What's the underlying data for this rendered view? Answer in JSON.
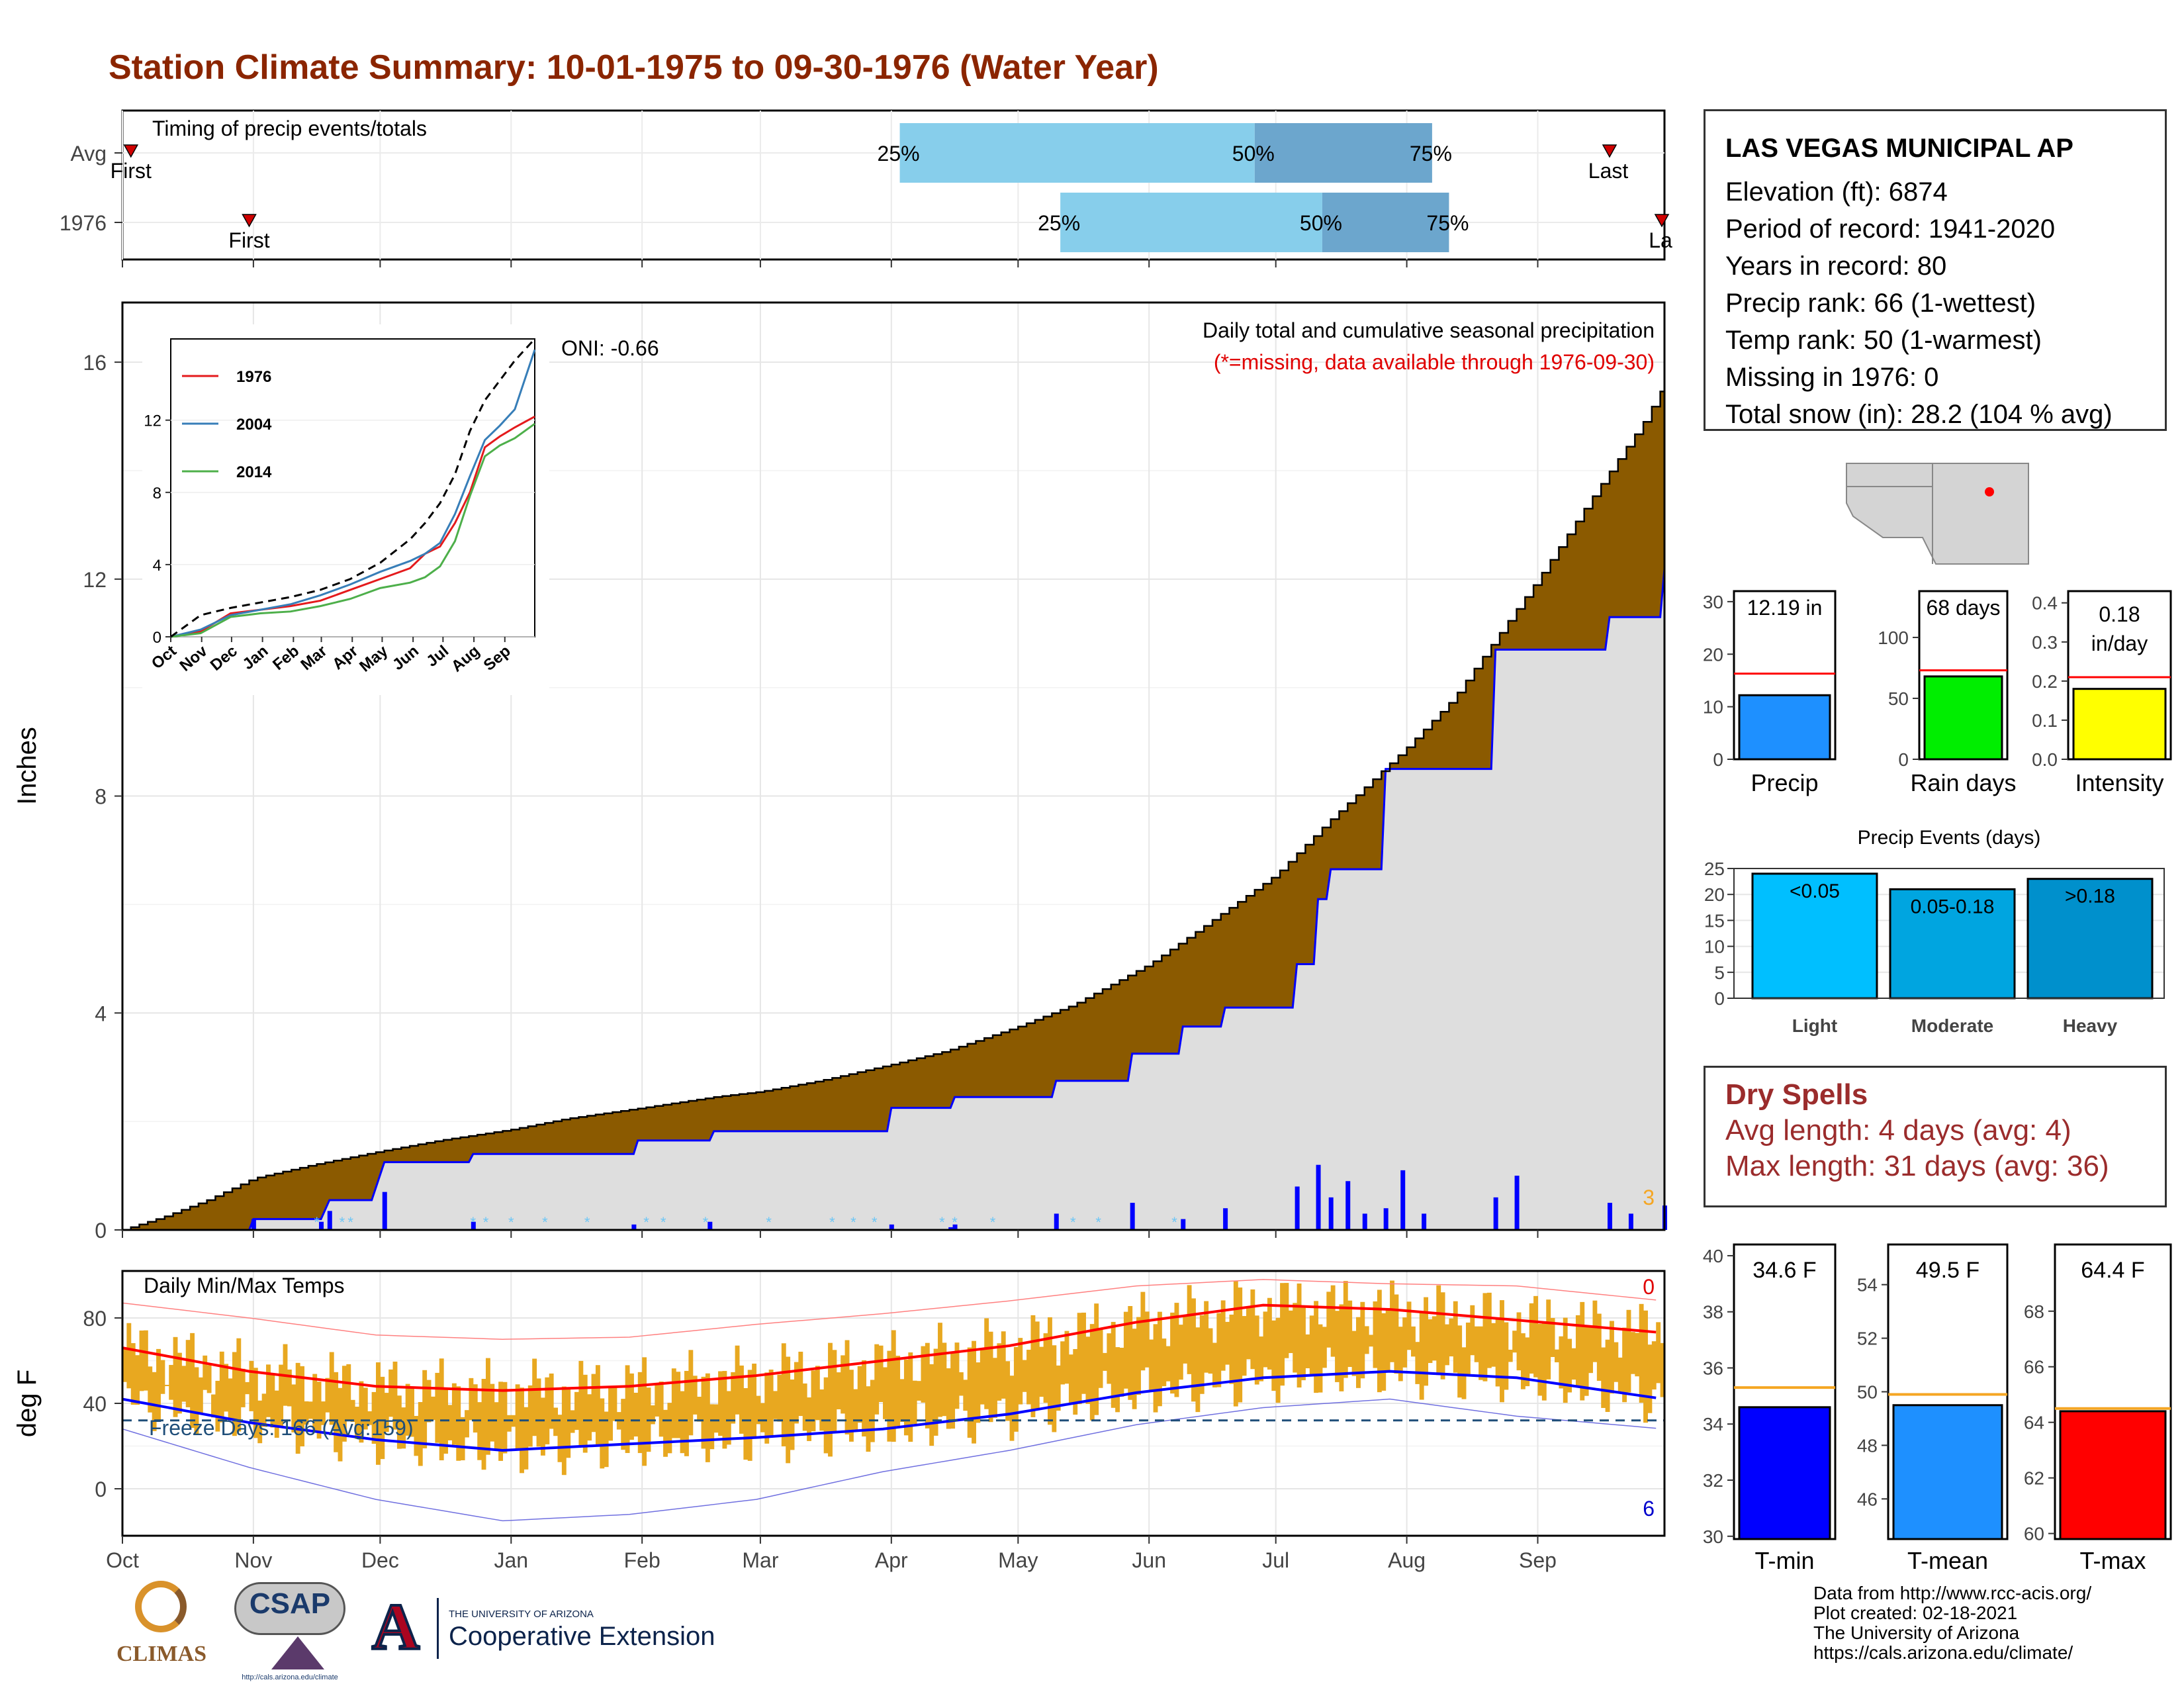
{
  "page": {
    "title": "Station Climate Summary: 10-01-1975 to 09-30-1976 (Water Year)"
  },
  "info": {
    "station": "LAS VEGAS MUNICIPAL AP",
    "lines": [
      "Elevation (ft): 6874",
      "Period of record: 1941-2020",
      "Years in record: 80",
      "Precip rank: 66 (1-wettest)",
      "Temp rank: 50 (1-warmest)",
      "Missing in 1976: 0",
      "Total snow (in): 28.2 (104 % avg)"
    ]
  },
  "dry_spells": {
    "title": "Dry Spells",
    "avg_length": "Avg length: 4 days (avg: 4)",
    "max_length": "Max length: 31 days (avg: 36)"
  },
  "footer": {
    "lines": [
      "Data from http://www.rcc-acis.org/",
      "Plot created: 02-18-2021",
      "The University of Arizona",
      "https://cals.arizona.edu/climate/"
    ],
    "logos": {
      "climas": "CLIMAS",
      "csap": "CSAP",
      "csap_url": "http://cals.arizona.edu/climate",
      "ua_small": "THE UNIVERSITY OF ARIZONA",
      "ua_large": "Cooperative Extension"
    }
  },
  "colors": {
    "title": "#8b2500",
    "cumulative_avg": "#8b5a00",
    "cumulative_obs": "#dedede",
    "daily_precip": "#0000ff",
    "temp_bars": "#e8a820",
    "max_avg": "#ff0000",
    "min_avg": "#0000ff",
    "quartile_light": "#87ceeb",
    "quartile_dark": "#6ca6cd",
    "dry_spells": "#9b2c2c"
  },
  "chart_data": [
    {
      "id": "timing",
      "type": "range-bar",
      "title": "Timing of precip events/totals",
      "months": [
        "Oct",
        "Nov",
        "Dec",
        "Jan",
        "Feb",
        "Mar",
        "Apr",
        "May",
        "Jun",
        "Jul",
        "Aug",
        "Sep"
      ],
      "x_unit": "day of water year",
      "rows": [
        {
          "label": "Avg",
          "first": 2,
          "p25": 184,
          "p50": 268,
          "p75": 310,
          "last": 352,
          "first_label": "First",
          "last_label": "Last",
          "p25_label": "25%",
          "p50_label": "50%",
          "p75_label": "75%"
        },
        {
          "label": "1976",
          "first": 30,
          "p25": 222,
          "p50": 284,
          "p75": 314,
          "last": 365,
          "first_label": "First",
          "last_label": "La",
          "p25_label": "25%",
          "p50_label": "50%",
          "p75_label": "75%"
        }
      ]
    },
    {
      "id": "precip",
      "type": "area",
      "title": "Daily total and cumulative seasonal precipitation",
      "subtitle": "(*=missing, data available through 1976-09-30)",
      "ylabel": "Inches",
      "ylim": [
        0,
        17.1
      ],
      "yticks": [
        0,
        4,
        8,
        12,
        16
      ],
      "oni": "ONI: -0.66",
      "corner_count": "3",
      "series": [
        {
          "name": "cumulative_avg",
          "x": [
            0,
            10,
            20,
            31,
            45,
            61,
            75,
            92,
            105,
            123,
            140,
            151,
            165,
            182,
            195,
            212,
            225,
            243,
            255,
            273,
            285,
            304,
            315,
            335,
            346,
            360,
            365
          ],
          "y": [
            0,
            0.25,
            0.55,
            0.95,
            1.2,
            1.45,
            1.65,
            1.85,
            2.05,
            2.25,
            2.45,
            2.55,
            2.75,
            3.05,
            3.3,
            3.75,
            4.15,
            4.9,
            5.55,
            6.55,
            7.5,
            8.9,
            9.8,
            12.0,
            13.3,
            14.9,
            15.6
          ]
        },
        {
          "name": "cumulative_1976",
          "x": [
            0,
            30,
            31,
            47,
            49,
            59,
            62,
            82,
            83,
            121,
            122,
            139,
            140,
            181,
            182,
            196,
            197,
            220,
            221,
            238,
            239,
            250,
            251,
            260,
            261,
            277,
            278,
            282,
            283,
            285,
            286,
            298,
            299,
            324,
            325,
            351,
            352,
            364,
            365
          ],
          "y": [
            0,
            0,
            0.2,
            0.2,
            0.55,
            0.55,
            1.25,
            1.25,
            1.4,
            1.4,
            1.65,
            1.65,
            1.82,
            1.82,
            2.25,
            2.25,
            2.45,
            2.45,
            2.75,
            2.75,
            3.25,
            3.25,
            3.75,
            3.75,
            4.1,
            4.1,
            4.9,
            4.9,
            6.1,
            6.1,
            6.65,
            6.65,
            8.5,
            8.5,
            10.7,
            10.7,
            11.3,
            11.3,
            12.19
          ]
        },
        {
          "name": "daily_precip",
          "x": [
            31,
            47,
            49,
            62,
            83,
            121,
            139,
            182,
            196,
            197,
            221,
            239,
            251,
            261,
            278,
            283,
            286,
            290,
            294,
            299,
            303,
            308,
            325,
            330,
            352,
            357,
            365
          ],
          "y": [
            0.2,
            0.15,
            0.35,
            0.7,
            0.15,
            0.1,
            0.15,
            0.1,
            0.05,
            0.1,
            0.3,
            0.5,
            0.2,
            0.4,
            0.8,
            1.2,
            0.6,
            0.9,
            0.3,
            0.4,
            1.1,
            0.3,
            0.6,
            1.0,
            0.5,
            0.3,
            0.45
          ]
        }
      ]
    },
    {
      "id": "precip_inset",
      "type": "line",
      "xticks": [
        "Oct",
        "Nov",
        "Dec",
        "Jan",
        "Feb",
        "Mar",
        "Apr",
        "May",
        "Jun",
        "Jul",
        "Aug",
        "Sep"
      ],
      "yticks": [
        0,
        4,
        8,
        12
      ],
      "ylim": [
        0,
        16.5
      ],
      "series": [
        {
          "name": "1976",
          "color": "#e41a1c",
          "x": [
            0,
            30,
            60,
            90,
            120,
            150,
            180,
            210,
            240,
            255,
            270,
            285,
            300,
            315,
            330,
            345,
            365
          ],
          "y": [
            0,
            0.3,
            1.3,
            1.5,
            1.7,
            2.0,
            2.6,
            3.2,
            3.8,
            4.6,
            5.0,
            6.3,
            8.0,
            10.5,
            11.1,
            11.6,
            12.2
          ]
        },
        {
          "name": "2004",
          "color": "#377eb8",
          "x": [
            0,
            30,
            60,
            90,
            120,
            150,
            180,
            210,
            240,
            255,
            270,
            285,
            300,
            315,
            330,
            345,
            365
          ],
          "y": [
            0,
            0.4,
            1.2,
            1.5,
            1.8,
            2.3,
            2.9,
            3.6,
            4.2,
            4.6,
            5.2,
            6.8,
            8.9,
            10.9,
            11.7,
            12.6,
            15.9
          ]
        },
        {
          "name": "2014",
          "color": "#4daf4a",
          "x": [
            0,
            30,
            60,
            90,
            120,
            150,
            180,
            210,
            240,
            255,
            270,
            285,
            300,
            315,
            330,
            345,
            365
          ],
          "y": [
            0,
            0.2,
            1.1,
            1.3,
            1.4,
            1.7,
            2.1,
            2.7,
            3.0,
            3.3,
            3.9,
            5.3,
            7.8,
            10.0,
            10.6,
            11.0,
            11.8
          ]
        },
        {
          "name": "avg",
          "color": "#000000",
          "x": [
            0,
            30,
            60,
            90,
            120,
            150,
            180,
            210,
            240,
            255,
            270,
            285,
            300,
            315,
            330,
            345,
            365
          ],
          "y": [
            0,
            1.2,
            1.6,
            1.9,
            2.2,
            2.6,
            3.2,
            4.1,
            5.4,
            6.3,
            7.4,
            9.0,
            11.4,
            13.1,
            14.2,
            15.3,
            16.5
          ]
        }
      ]
    },
    {
      "id": "temps",
      "type": "bar",
      "title": "Daily Min/Max Temps",
      "ylabel": "deg F",
      "ylim": [
        -22,
        102
      ],
      "yticks": [
        0,
        40,
        80
      ],
      "freeze_line": 32,
      "freeze_label": "Freeze Days: 166 (Avg:159)",
      "count_top": "0",
      "count_bottom": "6",
      "months": [
        "Oct",
        "Nov",
        "Dec",
        "Jan",
        "Feb",
        "Mar",
        "Apr",
        "May",
        "Jun",
        "Jul",
        "Aug",
        "Sep"
      ],
      "avg_max": {
        "x": [
          0,
          30,
          60,
          90,
          120,
          150,
          180,
          210,
          240,
          270,
          300,
          330,
          365
        ],
        "y": [
          66,
          55,
          48,
          46,
          48,
          53,
          60,
          67,
          78,
          86,
          84,
          79,
          73
        ]
      },
      "avg_min": {
        "x": [
          0,
          30,
          60,
          90,
          120,
          150,
          180,
          210,
          240,
          270,
          300,
          330,
          365
        ],
        "y": [
          42,
          31,
          23,
          18,
          21,
          24,
          28,
          35,
          45,
          52,
          55,
          52,
          42
        ]
      },
      "rec_max": {
        "x": [
          0,
          30,
          60,
          90,
          120,
          150,
          180,
          210,
          240,
          270,
          300,
          330,
          365
        ],
        "y": [
          87,
          80,
          72,
          70,
          71,
          77,
          82,
          88,
          95,
          98,
          96,
          95,
          88
        ]
      },
      "rec_min": {
        "x": [
          0,
          30,
          60,
          90,
          120,
          150,
          180,
          210,
          240,
          270,
          300,
          330,
          365
        ],
        "y": [
          28,
          10,
          -5,
          -15,
          -12,
          -5,
          8,
          18,
          30,
          38,
          42,
          34,
          28
        ]
      }
    },
    {
      "id": "precip_summary",
      "type": "bar",
      "panels": [
        {
          "label": "Precip",
          "value": 12.19,
          "avg": 16.3,
          "ylim": [
            0,
            32
          ],
          "yticks": [
            0,
            10,
            20,
            30
          ],
          "value_label": "12.19 in",
          "color": "#1e90ff"
        },
        {
          "label": "Rain days",
          "value": 68,
          "avg": 73,
          "ylim": [
            0,
            138
          ],
          "yticks": [
            0,
            50,
            100
          ],
          "value_label": "68 days",
          "color": "#00ee00"
        },
        {
          "label": "Intensity",
          "value": 0.18,
          "avg": 0.21,
          "ylim": [
            0,
            0.43
          ],
          "yticks": [
            0.0,
            0.1,
            0.2,
            0.3,
            0.4
          ],
          "value_label": "0.18 in/day",
          "color": "#ffff00"
        }
      ]
    },
    {
      "id": "precip_events",
      "type": "bar",
      "title": "Precip Events (days)",
      "ylim": [
        0,
        25
      ],
      "yticks": [
        0,
        5,
        10,
        15,
        20,
        25
      ],
      "categories": [
        "Light",
        "Moderate",
        "Heavy"
      ],
      "bar_labels": [
        "<0.05",
        "0.05-0.18",
        ">0.18"
      ],
      "values": [
        24,
        21,
        23
      ],
      "colors": [
        "#00bfff",
        "#00a5e0",
        "#0090cc"
      ]
    },
    {
      "id": "temp_summary",
      "type": "bar",
      "panels": [
        {
          "label": "T-min",
          "value": 34.6,
          "avg": 35.3,
          "ylim": [
            29.9,
            40.4
          ],
          "yticks": [
            30,
            32,
            34,
            36,
            38,
            40
          ],
          "value_label": "34.6 F",
          "color": "#0000ff"
        },
        {
          "label": "T-mean",
          "value": 49.5,
          "avg": 49.9,
          "ylim": [
            44.5,
            55.5
          ],
          "yticks": [
            46,
            48,
            50,
            52,
            54
          ],
          "value_label": "49.5 F",
          "color": "#1e90ff"
        },
        {
          "label": "T-max",
          "value": 64.4,
          "avg": 64.5,
          "ylim": [
            59.8,
            70.4
          ],
          "yticks": [
            60,
            62,
            64,
            66,
            68
          ],
          "value_label": "64.4 F",
          "color": "#ff0000"
        }
      ]
    }
  ]
}
